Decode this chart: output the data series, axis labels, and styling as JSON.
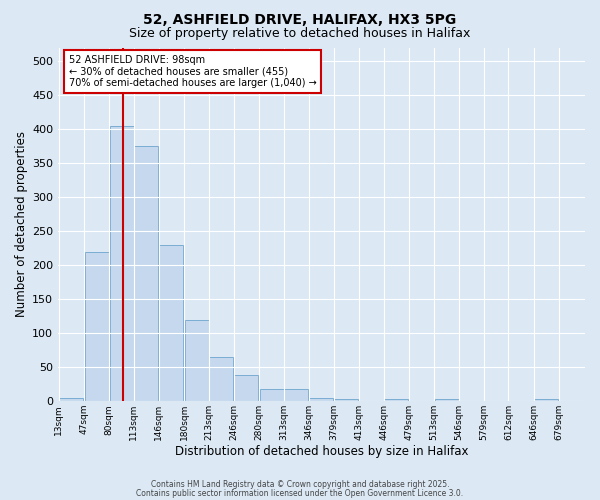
{
  "title1": "52, ASHFIELD DRIVE, HALIFAX, HX3 5PG",
  "title2": "Size of property relative to detached houses in Halifax",
  "xlabel": "Distribution of detached houses by size in Halifax",
  "ylabel": "Number of detached properties",
  "bin_labels": [
    "13sqm",
    "47sqm",
    "80sqm",
    "113sqm",
    "146sqm",
    "180sqm",
    "213sqm",
    "246sqm",
    "280sqm",
    "313sqm",
    "346sqm",
    "379sqm",
    "413sqm",
    "446sqm",
    "479sqm",
    "513sqm",
    "546sqm",
    "579sqm",
    "612sqm",
    "646sqm",
    "679sqm"
  ],
  "bar_values": [
    5,
    220,
    405,
    375,
    230,
    120,
    65,
    38,
    18,
    18,
    5,
    3,
    0,
    3,
    0,
    3,
    0,
    0,
    0,
    3,
    0
  ],
  "bar_color": "#c5d8ee",
  "bar_edge_color": "#7aadd4",
  "background_color": "#dce9f5",
  "grid_color": "#ffffff",
  "property_sqm": 98,
  "annotation_title": "52 ASHFIELD DRIVE: 98sqm",
  "annotation_line2": "← 30% of detached houses are smaller (455)",
  "annotation_line3": "70% of semi-detached houses are larger (1,040) →",
  "annotation_box_color": "#ffffff",
  "annotation_box_edge": "#cc0000",
  "red_line_color": "#cc0000",
  "footnote1": "Contains HM Land Registry data © Crown copyright and database right 2025.",
  "footnote2": "Contains public sector information licensed under the Open Government Licence 3.0.",
  "ylim": [
    0,
    520
  ],
  "bin_width": 33,
  "figwidth": 6.0,
  "figheight": 5.0,
  "dpi": 100
}
